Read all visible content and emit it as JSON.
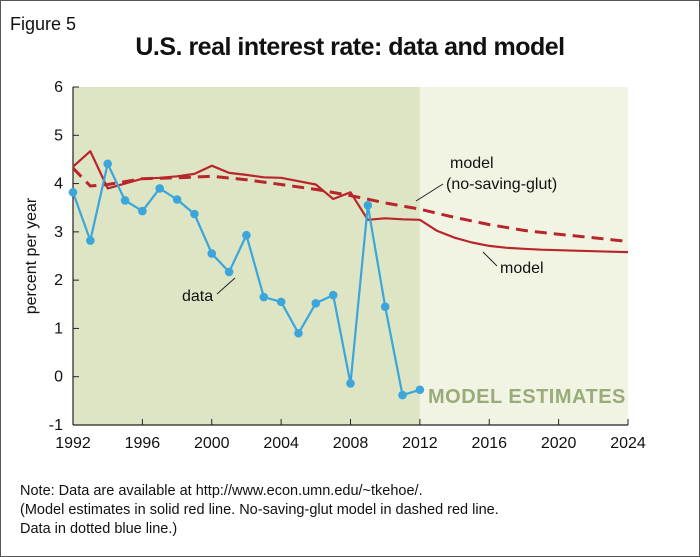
{
  "figure_label": "Figure 5",
  "chart_data": {
    "type": "line",
    "title": "U.S. real interest rate: data and model",
    "ylabel": "percent per year",
    "xlabel": "",
    "xlim": [
      1992,
      2024
    ],
    "ylim": [
      -1,
      6
    ],
    "x_ticks": [
      1992,
      1996,
      2000,
      2004,
      2008,
      2012,
      2016,
      2020,
      2024
    ],
    "y_ticks": [
      -1,
      0,
      1,
      2,
      3,
      4,
      5,
      6
    ],
    "shaded_regions": [
      {
        "from": 1992,
        "to": 2012,
        "color": "#dee5c4",
        "label": ""
      },
      {
        "from": 2012,
        "to": 2024,
        "color": "#f2f4e3",
        "label": "MODEL ESTIMATES"
      }
    ],
    "series": [
      {
        "name": "data",
        "style": "dotted-blue",
        "color": "#3aa6dc",
        "x": [
          1992,
          1993,
          1994,
          1995,
          1996,
          1997,
          1998,
          1999,
          2000,
          2001,
          2002,
          2003,
          2004,
          2005,
          2006,
          2007,
          2008,
          2009,
          2010,
          2011,
          2012
        ],
        "values": [
          3.82,
          2.82,
          4.41,
          3.65,
          3.43,
          3.9,
          3.67,
          3.37,
          2.55,
          2.17,
          2.93,
          1.65,
          1.55,
          0.9,
          1.52,
          1.69,
          -0.14,
          3.55,
          1.45,
          -0.38,
          -0.27
        ]
      },
      {
        "name": "model",
        "style": "solid-red",
        "color": "#b8262c",
        "x": [
          1992,
          1993,
          1994,
          1995,
          1996,
          1997,
          1998,
          1999,
          2000,
          2001,
          2002,
          2003,
          2004,
          2005,
          2006,
          2007,
          2008,
          2009,
          2010,
          2011,
          2012,
          2013,
          2014,
          2015,
          2016,
          2017,
          2018,
          2019,
          2020,
          2021,
          2022,
          2023,
          2024
        ],
        "values": [
          4.35,
          4.67,
          3.9,
          4.0,
          4.1,
          4.12,
          4.15,
          4.2,
          4.37,
          4.22,
          4.18,
          4.13,
          4.12,
          4.05,
          3.98,
          3.68,
          3.82,
          3.25,
          3.28,
          3.26,
          3.25,
          3.02,
          2.88,
          2.78,
          2.71,
          2.67,
          2.65,
          2.63,
          2.62,
          2.61,
          2.6,
          2.59,
          2.58
        ]
      },
      {
        "name": "model (no-saving-glut)",
        "style": "dashed-red",
        "color": "#b8262c",
        "x": [
          1992,
          1993,
          1994,
          1996,
          1998,
          2000,
          2002,
          2004,
          2006,
          2008,
          2010,
          2012,
          2014,
          2016,
          2018,
          2020,
          2022,
          2024
        ],
        "values": [
          4.32,
          3.95,
          3.98,
          4.1,
          4.12,
          4.15,
          4.08,
          3.98,
          3.88,
          3.75,
          3.6,
          3.47,
          3.3,
          3.15,
          3.03,
          2.95,
          2.88,
          2.8
        ]
      }
    ],
    "annotations": [
      {
        "text": "data",
        "target": "data"
      },
      {
        "text": "model",
        "target": "model"
      },
      {
        "text": "model",
        "target": "model (no-saving-glut)"
      },
      {
        "text": "(no-saving-glut)",
        "target": "model (no-saving-glut)"
      }
    ]
  },
  "note_lines": [
    "Note: Data are available at http://www.econ.umn.edu/~tkehoe/.",
    "(Model estimates in solid red line. No-saving-glut model in dashed red line.",
    "Data in dotted blue line.)"
  ]
}
